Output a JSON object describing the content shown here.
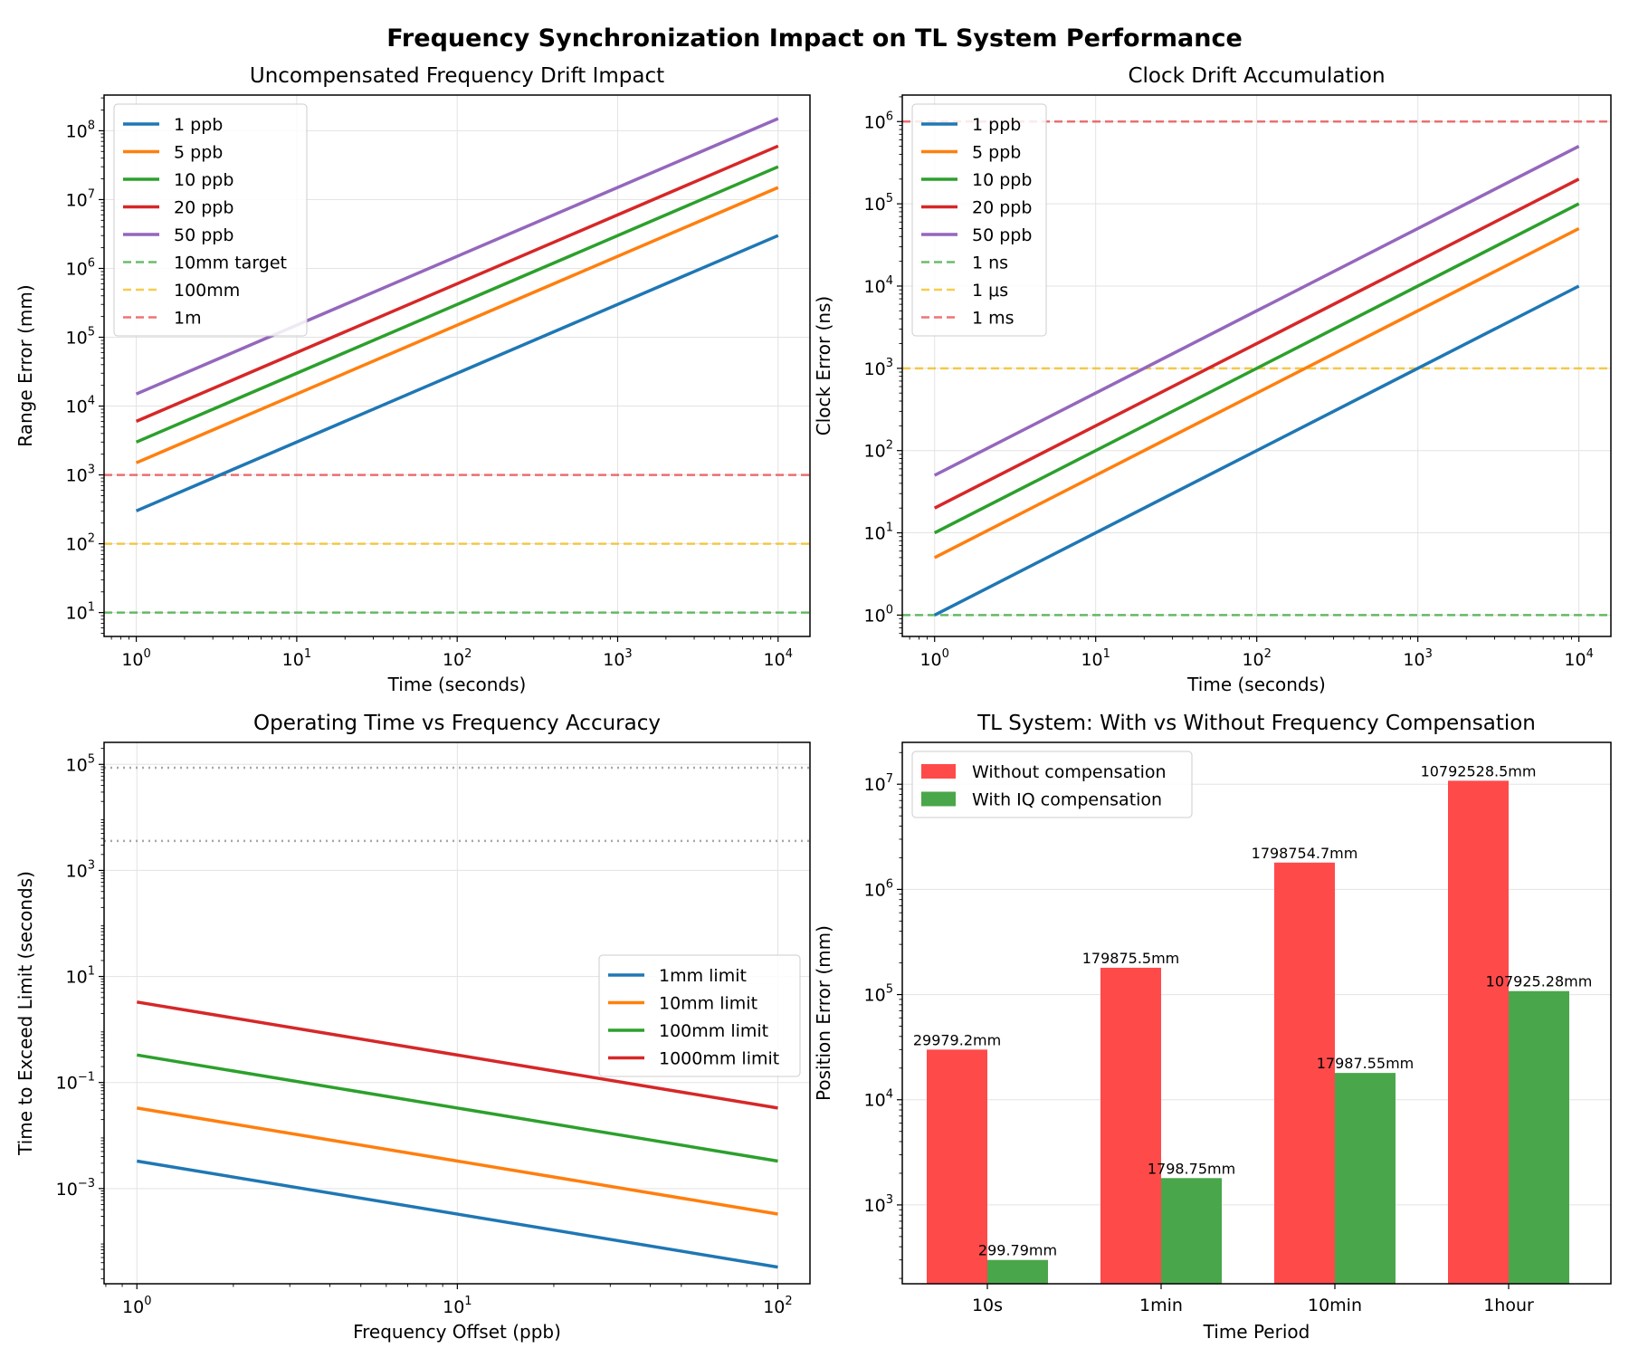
{
  "figure": {
    "title": "Frequency Synchronization Impact on TL System Performance"
  },
  "chart_data": [
    {
      "id": "drift",
      "type": "line",
      "title": "Uncompensated Frequency Drift Impact",
      "xlabel": "Time (seconds)",
      "ylabel": "Range Error (mm)",
      "xscale": "log",
      "yscale": "log",
      "xlim": [
        0.63,
        15800
      ],
      "ylim": [
        4.5,
        330000000.0
      ],
      "xticks": [
        {
          "v": 1,
          "e": "0"
        },
        {
          "v": 10,
          "e": "1"
        },
        {
          "v": 100,
          "e": "2"
        },
        {
          "v": 1000,
          "e": "3"
        },
        {
          "v": 10000,
          "e": "4"
        }
      ],
      "yticks": [
        {
          "v": 10,
          "e": "1"
        },
        {
          "v": 100,
          "e": "2"
        },
        {
          "v": 1000,
          "e": "3"
        },
        {
          "v": 10000,
          "e": "4"
        },
        {
          "v": 100000,
          "e": "5"
        },
        {
          "v": 1000000,
          "e": "6"
        },
        {
          "v": 10000000,
          "e": "7"
        },
        {
          "v": 100000000,
          "e": "8"
        }
      ],
      "grid": true,
      "legend_position": "top-left",
      "series": [
        {
          "name": "1 ppb",
          "color": "#1f77b4",
          "x": [
            1,
            10000
          ],
          "y": [
            300,
            3000000
          ]
        },
        {
          "name": "5 ppb",
          "color": "#ff7f0e",
          "x": [
            1,
            10000
          ],
          "y": [
            1500,
            15000000
          ]
        },
        {
          "name": "10 ppb",
          "color": "#2ca02c",
          "x": [
            1,
            10000
          ],
          "y": [
            3000,
            30000000
          ]
        },
        {
          "name": "20 ppb",
          "color": "#d62728",
          "x": [
            1,
            10000
          ],
          "y": [
            6000,
            60000000
          ]
        },
        {
          "name": "50 ppb",
          "color": "#9467bd",
          "x": [
            1,
            10000
          ],
          "y": [
            15000,
            150000000
          ]
        }
      ],
      "hlines": [
        {
          "name": "10mm target",
          "y": 10,
          "color": "#2ca02c"
        },
        {
          "name": "100mm",
          "y": 100,
          "color": "#f5b700"
        },
        {
          "name": "1m",
          "y": 1000,
          "color": "#e8383b"
        }
      ]
    },
    {
      "id": "clock",
      "type": "line",
      "title": "Clock Drift Accumulation",
      "xlabel": "Time (seconds)",
      "ylabel": "Clock Error (ns)",
      "xscale": "log",
      "yscale": "log",
      "xlim": [
        0.63,
        15800
      ],
      "ylim": [
        0.55,
        2100000.0
      ],
      "xticks": [
        {
          "v": 1,
          "e": "0"
        },
        {
          "v": 10,
          "e": "1"
        },
        {
          "v": 100,
          "e": "2"
        },
        {
          "v": 1000,
          "e": "3"
        },
        {
          "v": 10000,
          "e": "4"
        }
      ],
      "yticks": [
        {
          "v": 1,
          "e": "0"
        },
        {
          "v": 10,
          "e": "1"
        },
        {
          "v": 100,
          "e": "2"
        },
        {
          "v": 1000,
          "e": "3"
        },
        {
          "v": 10000,
          "e": "4"
        },
        {
          "v": 100000,
          "e": "5"
        },
        {
          "v": 1000000,
          "e": "6"
        }
      ],
      "grid": true,
      "legend_position": "top-left",
      "series": [
        {
          "name": "1 ppb",
          "color": "#1f77b4",
          "x": [
            1,
            10000
          ],
          "y": [
            1,
            10000
          ]
        },
        {
          "name": "5 ppb",
          "color": "#ff7f0e",
          "x": [
            1,
            10000
          ],
          "y": [
            5,
            50000
          ]
        },
        {
          "name": "10 ppb",
          "color": "#2ca02c",
          "x": [
            1,
            10000
          ],
          "y": [
            10,
            100000
          ]
        },
        {
          "name": "20 ppb",
          "color": "#d62728",
          "x": [
            1,
            10000
          ],
          "y": [
            20,
            200000
          ]
        },
        {
          "name": "50 ppb",
          "color": "#9467bd",
          "x": [
            1,
            10000
          ],
          "y": [
            50,
            500000
          ]
        }
      ],
      "hlines": [
        {
          "name": "1 ns",
          "y": 1,
          "color": "#2ca02c"
        },
        {
          "name": "1 μs",
          "y": 1000,
          "color": "#f5b700"
        },
        {
          "name": "1 ms",
          "y": 1000000,
          "color": "#e8383b"
        }
      ]
    },
    {
      "id": "optime",
      "type": "line",
      "title": "Operating Time vs Frequency Accuracy",
      "xlabel": "Frequency Offset (ppb)",
      "ylabel": "Time to Exceed Limit (seconds)",
      "xscale": "log",
      "yscale": "log",
      "xlim": [
        0.79,
        126
      ],
      "ylim": [
        1.6e-05,
        260000.0
      ],
      "xticks": [
        {
          "v": 1,
          "e": "0"
        },
        {
          "v": 10,
          "e": "1"
        },
        {
          "v": 100,
          "e": "2"
        }
      ],
      "yticks": [
        {
          "v": 0.001,
          "e": "−3"
        },
        {
          "v": 0.1,
          "e": "−1"
        },
        {
          "v": 10,
          "e": "1"
        },
        {
          "v": 1000,
          "e": "3"
        },
        {
          "v": 100000,
          "e": "5"
        }
      ],
      "grid": true,
      "legend_position": "center-right",
      "series": [
        {
          "name": "1mm limit",
          "color": "#1f77b4",
          "x": [
            1,
            100
          ],
          "y": [
            0.0033,
            3.3e-05
          ]
        },
        {
          "name": "10mm limit",
          "color": "#ff7f0e",
          "x": [
            1,
            100
          ],
          "y": [
            0.033,
            0.00033
          ]
        },
        {
          "name": "100mm limit",
          "color": "#2ca02c",
          "x": [
            1,
            100
          ],
          "y": [
            0.33,
            0.0033
          ]
        },
        {
          "name": "1000mm limit",
          "color": "#d62728",
          "x": [
            1,
            100
          ],
          "y": [
            3.3,
            0.033
          ]
        }
      ],
      "hlines": [
        {
          "y": 86400,
          "color": "#999999"
        },
        {
          "y": 3600,
          "color": "#999999"
        }
      ]
    },
    {
      "id": "bars",
      "type": "bar",
      "title": "TL System: With vs Without Frequency Compensation",
      "xlabel": "Time Period",
      "ylabel": "Position Error (mm)",
      "yscale": "log",
      "ylim": [
        178,
        25000000.0
      ],
      "categories": [
        "10s",
        "1min",
        "10min",
        "1hour"
      ],
      "yticks": [
        {
          "v": 1000,
          "e": "3"
        },
        {
          "v": 10000,
          "e": "4"
        },
        {
          "v": 100000,
          "e": "5"
        },
        {
          "v": 1000000,
          "e": "6"
        },
        {
          "v": 10000000,
          "e": "7"
        }
      ],
      "grid": true,
      "legend_position": "top-left",
      "series": [
        {
          "name": "Without compensation",
          "color": "#ff4a4a",
          "values": [
            29979.2,
            179875.5,
            1798754.7,
            10792528.5
          ],
          "labels": [
            "29979.2mm",
            "179875.5mm",
            "1798754.7mm",
            "10792528.5mm"
          ]
        },
        {
          "name": "With IQ compensation",
          "color": "#4aa64a",
          "values": [
            299.79,
            1798.75,
            17987.55,
            107925.28
          ],
          "labels": [
            "299.79mm",
            "1798.75mm",
            "17987.55mm",
            "107925.28mm"
          ]
        }
      ]
    }
  ]
}
